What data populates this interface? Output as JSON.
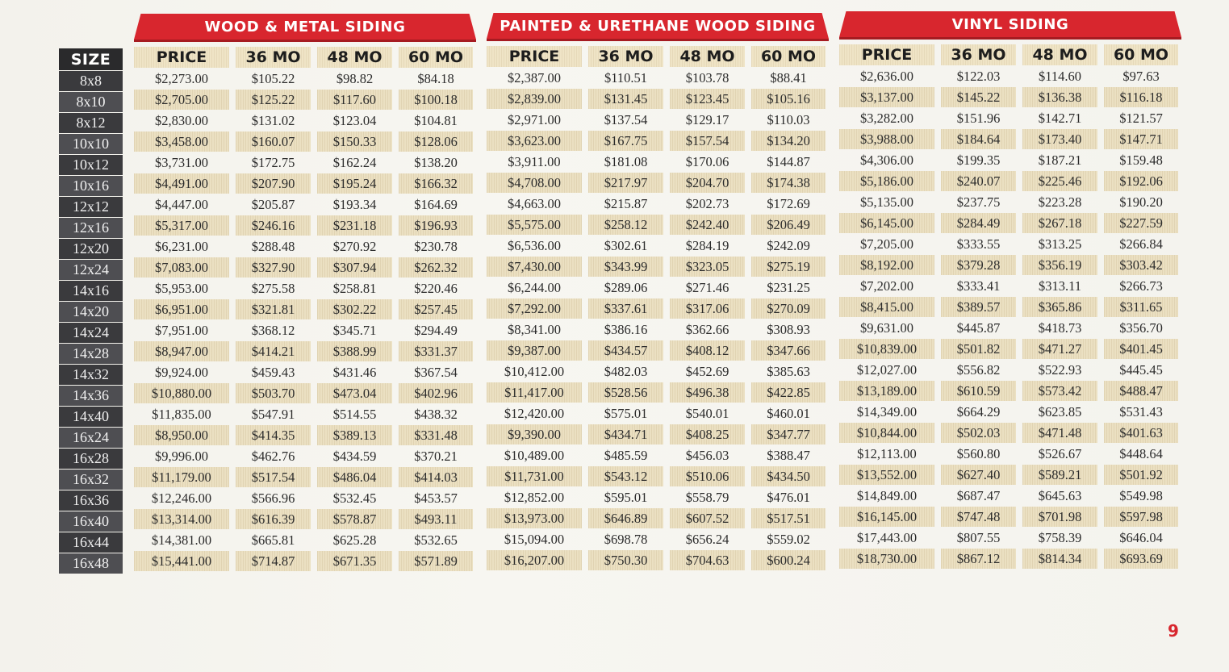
{
  "page_number": "9",
  "size_header": "SIZE",
  "column_headers": [
    "PRICE",
    "36 MO",
    "48 MO",
    "60 MO"
  ],
  "sizes": [
    "8x8",
    "8x10",
    "8x12",
    "10x10",
    "10x12",
    "10x16",
    "12x12",
    "12x16",
    "12x20",
    "12x24",
    "14x16",
    "14x20",
    "14x24",
    "14x28",
    "14x32",
    "14x36",
    "14x40",
    "16x24",
    "16x28",
    "16x32",
    "16x36",
    "16x40",
    "16x44",
    "16x48"
  ],
  "sections": [
    {
      "title": "WOOD & METAL SIDING",
      "rows": [
        [
          "$2,273.00",
          "$105.22",
          "$98.82",
          "$84.18"
        ],
        [
          "$2,705.00",
          "$125.22",
          "$117.60",
          "$100.18"
        ],
        [
          "$2,830.00",
          "$131.02",
          "$123.04",
          "$104.81"
        ],
        [
          "$3,458.00",
          "$160.07",
          "$150.33",
          "$128.06"
        ],
        [
          "$3,731.00",
          "$172.75",
          "$162.24",
          "$138.20"
        ],
        [
          "$4,491.00",
          "$207.90",
          "$195.24",
          "$166.32"
        ],
        [
          "$4,447.00",
          "$205.87",
          "$193.34",
          "$164.69"
        ],
        [
          "$5,317.00",
          "$246.16",
          "$231.18",
          "$196.93"
        ],
        [
          "$6,231.00",
          "$288.48",
          "$270.92",
          "$230.78"
        ],
        [
          "$7,083.00",
          "$327.90",
          "$307.94",
          "$262.32"
        ],
        [
          "$5,953.00",
          "$275.58",
          "$258.81",
          "$220.46"
        ],
        [
          "$6,951.00",
          "$321.81",
          "$302.22",
          "$257.45"
        ],
        [
          "$7,951.00",
          "$368.12",
          "$345.71",
          "$294.49"
        ],
        [
          "$8,947.00",
          "$414.21",
          "$388.99",
          "$331.37"
        ],
        [
          "$9,924.00",
          "$459.43",
          "$431.46",
          "$367.54"
        ],
        [
          "$10,880.00",
          "$503.70",
          "$473.04",
          "$402.96"
        ],
        [
          "$11,835.00",
          "$547.91",
          "$514.55",
          "$438.32"
        ],
        [
          "$8,950.00",
          "$414.35",
          "$389.13",
          "$331.48"
        ],
        [
          "$9,996.00",
          "$462.76",
          "$434.59",
          "$370.21"
        ],
        [
          "$11,179.00",
          "$517.54",
          "$486.04",
          "$414.03"
        ],
        [
          "$12,246.00",
          "$566.96",
          "$532.45",
          "$453.57"
        ],
        [
          "$13,314.00",
          "$616.39",
          "$578.87",
          "$493.11"
        ],
        [
          "$14,381.00",
          "$665.81",
          "$625.28",
          "$532.65"
        ],
        [
          "$15,441.00",
          "$714.87",
          "$671.35",
          "$571.89"
        ]
      ]
    },
    {
      "title": "PAINTED & URETHANE WOOD SIDING",
      "rows": [
        [
          "$2,387.00",
          "$110.51",
          "$103.78",
          "$88.41"
        ],
        [
          "$2,839.00",
          "$131.45",
          "$123.45",
          "$105.16"
        ],
        [
          "$2,971.00",
          "$137.54",
          "$129.17",
          "$110.03"
        ],
        [
          "$3,623.00",
          "$167.75",
          "$157.54",
          "$134.20"
        ],
        [
          "$3,911.00",
          "$181.08",
          "$170.06",
          "$144.87"
        ],
        [
          "$4,708.00",
          "$217.97",
          "$204.70",
          "$174.38"
        ],
        [
          "$4,663.00",
          "$215.87",
          "$202.73",
          "$172.69"
        ],
        [
          "$5,575.00",
          "$258.12",
          "$242.40",
          "$206.49"
        ],
        [
          "$6,536.00",
          "$302.61",
          "$284.19",
          "$242.09"
        ],
        [
          "$7,430.00",
          "$343.99",
          "$323.05",
          "$275.19"
        ],
        [
          "$6,244.00",
          "$289.06",
          "$271.46",
          "$231.25"
        ],
        [
          "$7,292.00",
          "$337.61",
          "$317.06",
          "$270.09"
        ],
        [
          "$8,341.00",
          "$386.16",
          "$362.66",
          "$308.93"
        ],
        [
          "$9,387.00",
          "$434.57",
          "$408.12",
          "$347.66"
        ],
        [
          "$10,412.00",
          "$482.03",
          "$452.69",
          "$385.63"
        ],
        [
          "$11,417.00",
          "$528.56",
          "$496.38",
          "$422.85"
        ],
        [
          "$12,420.00",
          "$575.01",
          "$540.01",
          "$460.01"
        ],
        [
          "$9,390.00",
          "$434.71",
          "$408.25",
          "$347.77"
        ],
        [
          "$10,489.00",
          "$485.59",
          "$456.03",
          "$388.47"
        ],
        [
          "$11,731.00",
          "$543.12",
          "$510.06",
          "$434.50"
        ],
        [
          "$12,852.00",
          "$595.01",
          "$558.79",
          "$476.01"
        ],
        [
          "$13,973.00",
          "$646.89",
          "$607.52",
          "$517.51"
        ],
        [
          "$15,094.00",
          "$698.78",
          "$656.24",
          "$559.02"
        ],
        [
          "$16,207.00",
          "$750.30",
          "$704.63",
          "$600.24"
        ]
      ]
    },
    {
      "title": "VINYL SIDING",
      "rows": [
        [
          "$2,636.00",
          "$122.03",
          "$114.60",
          "$97.63"
        ],
        [
          "$3,137.00",
          "$145.22",
          "$136.38",
          "$116.18"
        ],
        [
          "$3,282.00",
          "$151.96",
          "$142.71",
          "$121.57"
        ],
        [
          "$3,988.00",
          "$184.64",
          "$173.40",
          "$147.71"
        ],
        [
          "$4,306.00",
          "$199.35",
          "$187.21",
          "$159.48"
        ],
        [
          "$5,186.00",
          "$240.07",
          "$225.46",
          "$192.06"
        ],
        [
          "$5,135.00",
          "$237.75",
          "$223.28",
          "$190.20"
        ],
        [
          "$6,145.00",
          "$284.49",
          "$267.18",
          "$227.59"
        ],
        [
          "$7,205.00",
          "$333.55",
          "$313.25",
          "$266.84"
        ],
        [
          "$8,192.00",
          "$379.28",
          "$356.19",
          "$303.42"
        ],
        [
          "$7,202.00",
          "$333.41",
          "$313.11",
          "$266.73"
        ],
        [
          "$8,415.00",
          "$389.57",
          "$365.86",
          "$311.65"
        ],
        [
          "$9,631.00",
          "$445.87",
          "$418.73",
          "$356.70"
        ],
        [
          "$10,839.00",
          "$501.82",
          "$471.27",
          "$401.45"
        ],
        [
          "$12,027.00",
          "$556.82",
          "$522.93",
          "$445.45"
        ],
        [
          "$13,189.00",
          "$610.59",
          "$573.42",
          "$488.47"
        ],
        [
          "$14,349.00",
          "$664.29",
          "$623.85",
          "$531.43"
        ],
        [
          "$10,844.00",
          "$502.03",
          "$471.48",
          "$401.63"
        ],
        [
          "$12,113.00",
          "$560.80",
          "$526.67",
          "$448.64"
        ],
        [
          "$13,552.00",
          "$627.40",
          "$589.21",
          "$501.92"
        ],
        [
          "$14,849.00",
          "$687.47",
          "$645.63",
          "$549.98"
        ],
        [
          "$16,145.00",
          "$747.48",
          "$701.98",
          "$597.98"
        ],
        [
          "$17,443.00",
          "$807.55",
          "$758.39",
          "$646.04"
        ],
        [
          "$18,730.00",
          "$867.12",
          "$814.34",
          "$693.69"
        ]
      ]
    }
  ]
}
